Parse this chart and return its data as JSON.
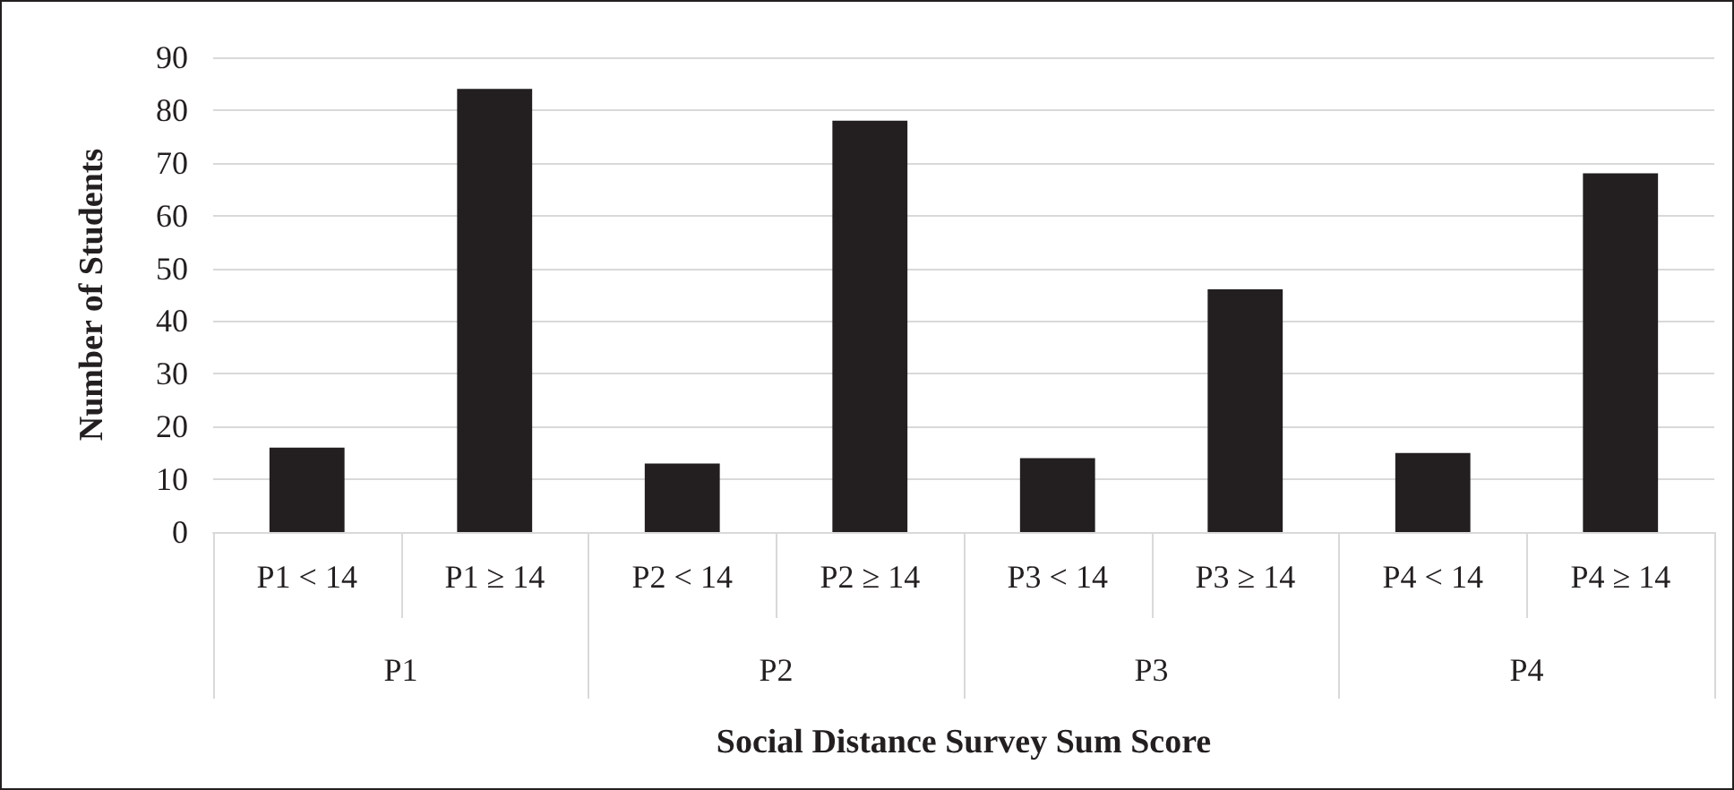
{
  "chart_data": {
    "type": "bar",
    "xlabel": "Social Distance Survey Sum Score",
    "ylabel": "Number of Students",
    "categories": [
      "P1 < 14",
      "P1 ≥ 14",
      "P2 < 14",
      "P2 ≥ 14",
      "P3 < 14",
      "P3 ≥ 14",
      "P4 < 14",
      "P4 ≥ 14"
    ],
    "values": [
      16,
      84,
      13,
      78,
      14,
      46,
      15,
      68
    ],
    "color": "#231f20",
    "annotations": [
      "P1",
      "P2",
      "P3",
      "P4"
    ],
    "ylim": [
      0,
      90
    ],
    "yticks": [
      0,
      10,
      20,
      30,
      40,
      50,
      60,
      70,
      80,
      90
    ],
    "grid": "y"
  }
}
